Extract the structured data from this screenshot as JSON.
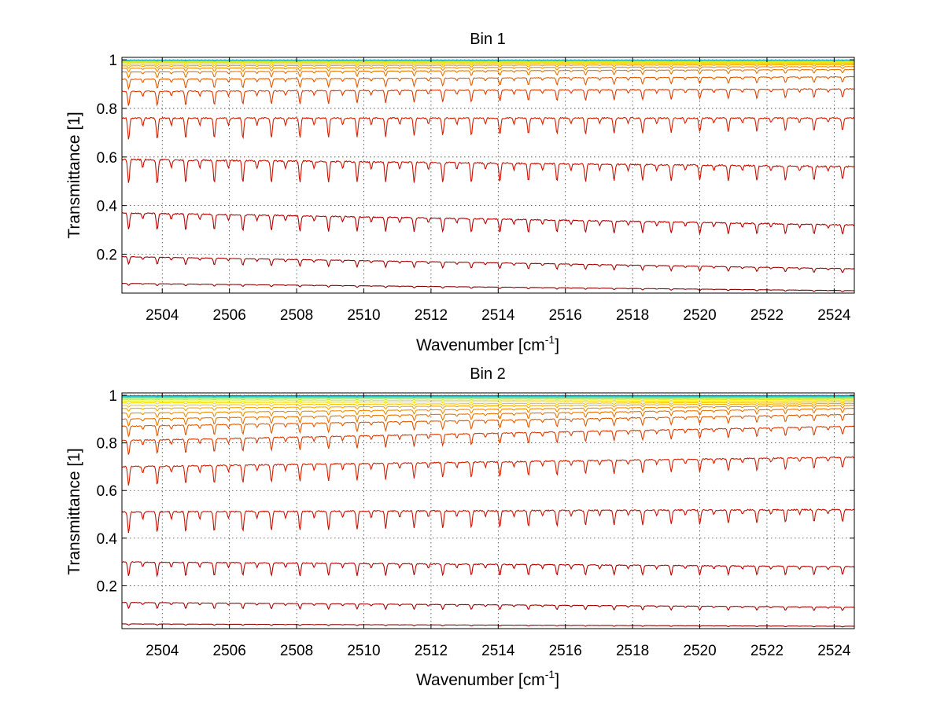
{
  "chart_data": [
    {
      "type": "line",
      "title": "Bin 1",
      "xlabel": "Wavenumber [cm",
      "xlabel_sup": "-1",
      "xlabel_end": "]",
      "ylabel": "Transmittance [1]",
      "xlim": [
        2502.8,
        2524.6
      ],
      "ylim": [
        0.04,
        1.01
      ],
      "xticks": [
        "2504",
        "2506",
        "2508",
        "2510",
        "2512",
        "2514",
        "2516",
        "2518",
        "2520",
        "2522",
        "2524"
      ],
      "yticks": [
        "0.2",
        "0.4",
        "0.6",
        "0.8",
        "1"
      ],
      "grid": true,
      "line_spacing_cm-1": 0.85,
      "series": [
        {
          "color": "#8b0000",
          "start": 0.08,
          "end": 0.05,
          "depth": 0.008
        },
        {
          "color": "#a50000",
          "start": 0.19,
          "end": 0.14,
          "depth": 0.03
        },
        {
          "color": "#b80000",
          "start": 0.37,
          "end": 0.32,
          "depth": 0.07
        },
        {
          "color": "#c81000",
          "start": 0.59,
          "end": 0.56,
          "depth": 0.1
        },
        {
          "color": "#d42000",
          "start": 0.76,
          "end": 0.76,
          "depth": 0.09
        },
        {
          "color": "#dc3a00",
          "start": 0.87,
          "end": 0.88,
          "depth": 0.06
        },
        {
          "color": "#e25a00",
          "start": 0.92,
          "end": 0.93,
          "depth": 0.04
        },
        {
          "color": "#e87400",
          "start": 0.95,
          "end": 0.96,
          "depth": 0.025
        },
        {
          "color": "#f08c00",
          "start": 0.965,
          "end": 0.972,
          "depth": 0.015
        },
        {
          "color": "#f5a800",
          "start": 0.975,
          "end": 0.98,
          "depth": 0.01
        },
        {
          "color": "#f8c400",
          "start": 0.982,
          "end": 0.985,
          "depth": 0.007
        },
        {
          "color": "#fadc00",
          "start": 0.988,
          "end": 0.988,
          "depth": 0.004
        },
        {
          "color": "#e8ec10",
          "start": 0.991,
          "end": 0.991,
          "depth": 0.003
        },
        {
          "color": "#b8e838",
          "start": 0.993,
          "end": 0.993,
          "depth": 0.002
        },
        {
          "color": "#70e070",
          "start": 0.995,
          "end": 0.995,
          "depth": 0.002
        },
        {
          "color": "#30d0b0",
          "start": 0.997,
          "end": 0.997,
          "depth": 0.001
        },
        {
          "color": "#10a8e0",
          "start": 0.998,
          "end": 0.998,
          "depth": 0.001
        },
        {
          "color": "#0060c8",
          "start": 0.999,
          "end": 0.999,
          "depth": 0.001
        }
      ]
    },
    {
      "type": "line",
      "title": "Bin 2",
      "xlabel": "Wavenumber [cm",
      "xlabel_sup": "-1",
      "xlabel_end": "]",
      "ylabel": "Transmittance [1]",
      "xlim": [
        2502.8,
        2524.6
      ],
      "ylim": [
        0.02,
        1.01
      ],
      "xticks": [
        "2504",
        "2506",
        "2508",
        "2510",
        "2512",
        "2514",
        "2516",
        "2518",
        "2520",
        "2522",
        "2524"
      ],
      "yticks": [
        "0.2",
        "0.4",
        "0.6",
        "0.8",
        "1"
      ],
      "grid": true,
      "line_spacing_cm-1": 0.85,
      "series": [
        {
          "color": "#8b0000",
          "start": 0.04,
          "end": 0.03,
          "depth": 0.005
        },
        {
          "color": "#a50000",
          "start": 0.13,
          "end": 0.11,
          "depth": 0.025
        },
        {
          "color": "#b80000",
          "start": 0.3,
          "end": 0.28,
          "depth": 0.06
        },
        {
          "color": "#c81000",
          "start": 0.51,
          "end": 0.52,
          "depth": 0.09
        },
        {
          "color": "#d42000",
          "start": 0.7,
          "end": 0.74,
          "depth": 0.08
        },
        {
          "color": "#dc3a00",
          "start": 0.81,
          "end": 0.87,
          "depth": 0.06
        },
        {
          "color": "#e25a00",
          "start": 0.87,
          "end": 0.92,
          "depth": 0.045
        },
        {
          "color": "#e87400",
          "start": 0.9,
          "end": 0.945,
          "depth": 0.03
        },
        {
          "color": "#f08c00",
          "start": 0.925,
          "end": 0.958,
          "depth": 0.02
        },
        {
          "color": "#f5a800",
          "start": 0.945,
          "end": 0.966,
          "depth": 0.012
        },
        {
          "color": "#f8c400",
          "start": 0.958,
          "end": 0.972,
          "depth": 0.008
        },
        {
          "color": "#fadc00",
          "start": 0.968,
          "end": 0.978,
          "depth": 0.005
        },
        {
          "color": "#e8ec10",
          "start": 0.976,
          "end": 0.983,
          "depth": 0.004
        },
        {
          "color": "#b8e838",
          "start": 0.983,
          "end": 0.987,
          "depth": 0.003
        },
        {
          "color": "#70e070",
          "start": 0.989,
          "end": 0.991,
          "depth": 0.002
        },
        {
          "color": "#30d0b0",
          "start": 0.993,
          "end": 0.994,
          "depth": 0.002
        },
        {
          "color": "#10a8e0",
          "start": 0.996,
          "end": 0.997,
          "depth": 0.001
        },
        {
          "color": "#0060c8",
          "start": 0.998,
          "end": 0.999,
          "depth": 0.001
        }
      ]
    }
  ]
}
